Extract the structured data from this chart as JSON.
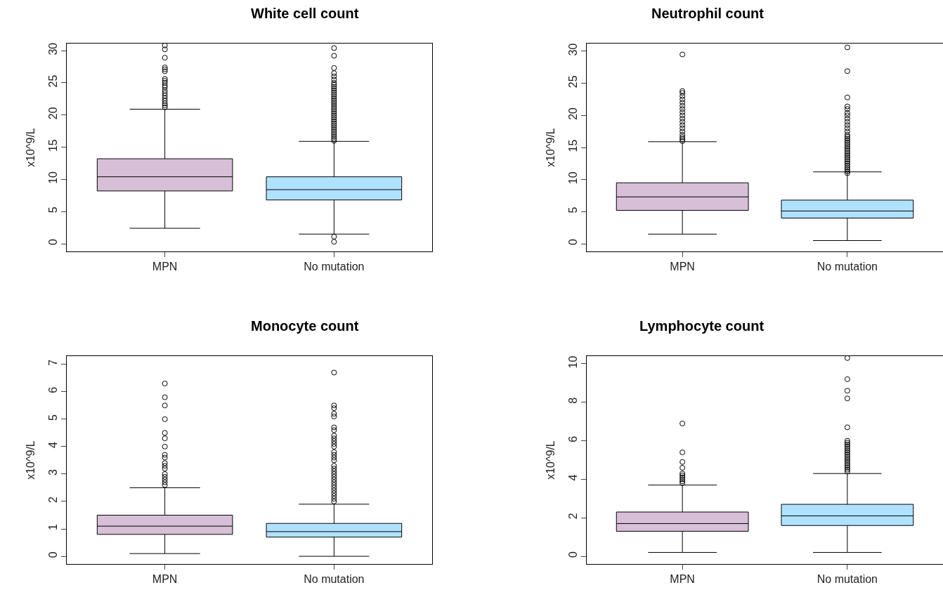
{
  "chart_data": [
    {
      "type": "box",
      "title": "White cell count",
      "ylabel": "x10^9/L",
      "categories": [
        "MPN",
        "No mutation"
      ],
      "colors": [
        "#d8bfd8",
        "#b0e2ff"
      ],
      "ylim": [
        -1.2,
        31.1
      ],
      "yticks": [
        0,
        5,
        10,
        15,
        20,
        25,
        30
      ],
      "marker": "circle",
      "boxes": [
        {
          "low": 2.4,
          "q1": 8.2,
          "median": 10.4,
          "q3": 13.2,
          "high": 20.9,
          "outliers": [
            21.2,
            21.5,
            21.8,
            22.2,
            22.6,
            23.0,
            23.4,
            23.8,
            24.3,
            24.6,
            25.0,
            25.3,
            25.6,
            26.8,
            27.1,
            27.4,
            28.9,
            30.2,
            30.8
          ]
        },
        {
          "low": 1.5,
          "q1": 6.8,
          "median": 8.4,
          "q3": 10.4,
          "high": 15.9,
          "outliers": [
            0.3,
            1.1,
            16.0,
            16.3,
            16.6,
            16.9,
            17.2,
            17.5,
            17.8,
            18.1,
            18.4,
            18.7,
            19.0,
            19.3,
            19.6,
            19.9,
            20.2,
            20.5,
            20.8,
            21.1,
            21.4,
            21.7,
            22.0,
            22.3,
            22.6,
            22.9,
            23.2,
            23.5,
            23.8,
            24.1,
            24.4,
            24.7,
            25.0,
            25.5,
            26.0,
            26.5,
            27.3,
            29.2,
            30.4
          ]
        }
      ]
    },
    {
      "type": "box",
      "title": "Neutrophil count",
      "ylabel": "x10^9/L",
      "categories": [
        "MPN",
        "No mutation"
      ],
      "colors": [
        "#d8bfd8",
        "#b0e2ff"
      ],
      "ylim": [
        -1.2,
        31.2
      ],
      "yticks": [
        0,
        5,
        10,
        15,
        20,
        25,
        30
      ],
      "marker": "circle",
      "boxes": [
        {
          "low": 1.5,
          "q1": 5.2,
          "median": 7.3,
          "q3": 9.5,
          "high": 15.9,
          "outliers": [
            16.0,
            16.3,
            16.6,
            17.0,
            17.5,
            18.0,
            18.5,
            19.0,
            19.5,
            20.0,
            20.5,
            21.0,
            21.5,
            22.0,
            22.5,
            23.0,
            23.5,
            23.8,
            29.5
          ]
        },
        {
          "low": 0.5,
          "q1": 4.0,
          "median": 5.1,
          "q3": 6.8,
          "high": 11.2,
          "outliers": [
            11.0,
            11.3,
            11.6,
            11.9,
            12.2,
            12.5,
            12.8,
            13.1,
            13.4,
            13.7,
            14.0,
            14.3,
            14.6,
            14.9,
            15.2,
            15.5,
            15.8,
            16.1,
            16.4,
            16.7,
            17.0,
            17.5,
            18.0,
            18.5,
            19.0,
            19.5,
            20.0,
            20.4,
            21.0,
            21.4,
            22.8,
            26.9,
            30.6
          ]
        }
      ]
    },
    {
      "type": "box",
      "title": "Monocyte count",
      "ylabel": "x10^9/L",
      "categories": [
        "MPN",
        "No mutation"
      ],
      "colors": [
        "#d8bfd8",
        "#b0e2ff"
      ],
      "ylim": [
        -0.28,
        7.3
      ],
      "yticks": [
        0,
        1,
        2,
        3,
        4,
        5,
        6,
        7
      ],
      "marker": "circle",
      "boxes": [
        {
          "low": 0.1,
          "q1": 0.8,
          "median": 1.1,
          "q3": 1.5,
          "high": 2.5,
          "outliers": [
            2.6,
            2.7,
            2.8,
            2.9,
            3.0,
            3.2,
            3.3,
            3.4,
            3.6,
            3.7,
            4.0,
            4.3,
            4.5,
            5.0,
            5.5,
            5.8,
            6.3
          ]
        },
        {
          "low": 0.0,
          "q1": 0.7,
          "median": 0.9,
          "q3": 1.2,
          "high": 1.9,
          "outliers": [
            2.0,
            2.1,
            2.2,
            2.3,
            2.4,
            2.5,
            2.6,
            2.7,
            2.8,
            2.9,
            3.0,
            3.1,
            3.2,
            3.3,
            3.5,
            3.6,
            3.7,
            3.8,
            4.0,
            4.1,
            4.2,
            4.3,
            4.4,
            4.6,
            4.7,
            5.1,
            5.2,
            5.4,
            5.5,
            6.7
          ]
        }
      ]
    },
    {
      "type": "box",
      "title": "Lymphocyte count",
      "ylabel": "x10^9/L",
      "categories": [
        "MPN",
        "No mutation"
      ],
      "colors": [
        "#d8bfd8",
        "#b0e2ff"
      ],
      "ylim": [
        -0.4,
        10.4
      ],
      "yticks": [
        0,
        2,
        4,
        6,
        8,
        10
      ],
      "marker": "circle",
      "boxes": [
        {
          "low": 0.2,
          "q1": 1.3,
          "median": 1.7,
          "q3": 2.3,
          "high": 3.7,
          "outliers": [
            3.8,
            3.9,
            4.0,
            4.1,
            4.2,
            4.3,
            4.6,
            4.9,
            5.4,
            6.9
          ]
        },
        {
          "low": 0.2,
          "q1": 1.6,
          "median": 2.1,
          "q3": 2.7,
          "high": 4.3,
          "outliers": [
            4.4,
            4.5,
            4.6,
            4.7,
            4.8,
            4.9,
            5.0,
            5.1,
            5.2,
            5.3,
            5.4,
            5.5,
            5.6,
            5.7,
            5.8,
            5.9,
            6.0,
            6.7,
            8.2,
            8.6,
            9.2,
            10.3
          ]
        }
      ]
    }
  ]
}
